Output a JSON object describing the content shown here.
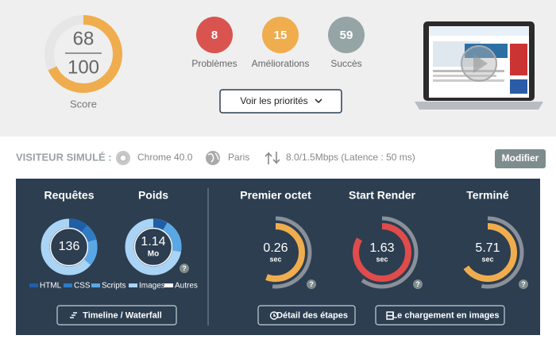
{
  "score": {
    "value": 68,
    "max": 100,
    "label": "Score"
  },
  "summary": [
    {
      "count": 8,
      "label": "Problèmes"
    },
    {
      "count": 15,
      "label": "Améliorations"
    },
    {
      "count": 59,
      "label": "Succès"
    }
  ],
  "priorities_button": "Voir les priorités",
  "visitor": {
    "label": "VISITEUR SIMULÉ :",
    "browser": "Chrome 40.0",
    "location": "Paris",
    "connection": "8.0/1.5Mbps (Latence : 50 ms)",
    "edit_button": "Modifier"
  },
  "metrics": {
    "requests": {
      "title": "Requêtes",
      "value": 136
    },
    "weight": {
      "title": "Poids",
      "value": 1.14,
      "unit": "Mo",
      "help": "?"
    },
    "legend": [
      "HTML",
      "CSS",
      "Scripts",
      "Images",
      "Autres"
    ],
    "timeline_button": "Timeline / Waterfall",
    "timings": [
      {
        "title": "Premier octet",
        "value": 0.26,
        "unit": "sec",
        "help": "?"
      },
      {
        "title": "Start Render",
        "value": 1.63,
        "unit": "sec",
        "help": "?"
      },
      {
        "title": "Terminé",
        "value": 5.71,
        "unit": "sec",
        "help": "?"
      }
    ],
    "steps_button": "Détail des étapes",
    "filmstrip_button": "Le chargement en images"
  }
}
